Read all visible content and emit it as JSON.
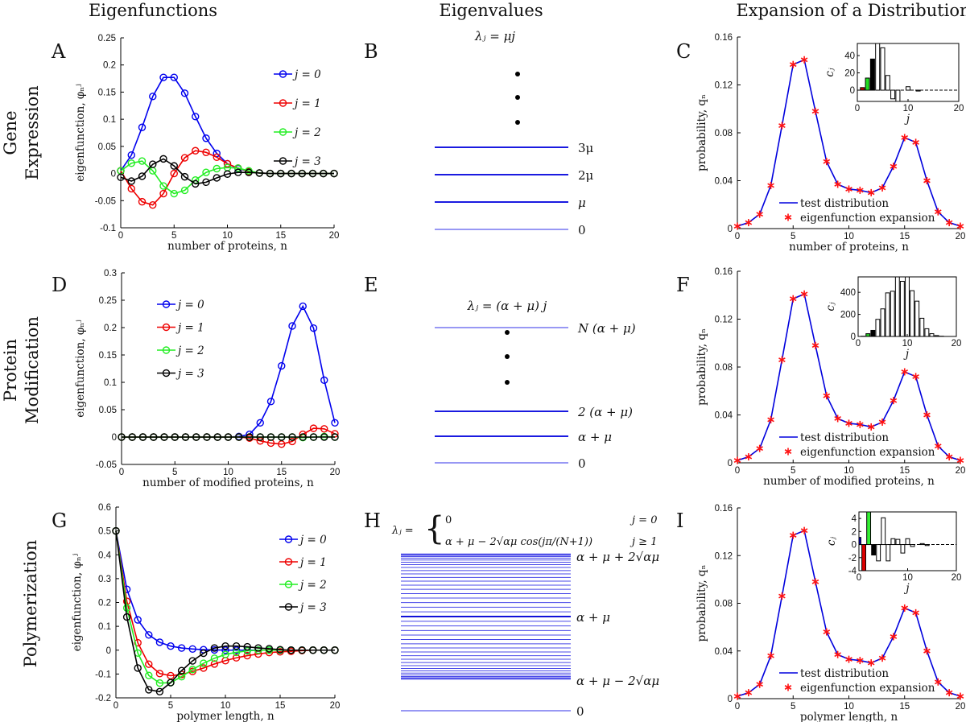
{
  "column_headers": [
    "Eigenfunctions",
    "Eigenvalues",
    "Expansion of a Distribution"
  ],
  "row_labels": [
    [
      "Gene",
      "Expression"
    ],
    [
      "Protein",
      "Modification"
    ],
    [
      "Polymerization"
    ]
  ],
  "colors": {
    "j0": "#0000ee",
    "j1": "#ee0000",
    "j2": "#22ee22",
    "j3": "#000000",
    "test_distribution": "#0000dd",
    "expansion": "#ff1010",
    "level_line": "#1a1ae0"
  },
  "chart_data": [
    {
      "panel": "A",
      "type": "line",
      "xlabel": "number of proteins, n",
      "ylabel": "eigenfunction, φₙʲ",
      "xlim": [
        0,
        20
      ],
      "ylim": [
        -0.1,
        0.25
      ],
      "xticks": [
        0,
        5,
        10,
        15,
        20
      ],
      "yticks": [
        -0.1,
        -0.05,
        0,
        0.05,
        0.1,
        0.15,
        0.2,
        0.25
      ],
      "legend": "top-right",
      "series": [
        {
          "name": "j = 0",
          "color": "#0000ee",
          "values": [
            0.005,
            0.034,
            0.085,
            0.142,
            0.177,
            0.177,
            0.148,
            0.105,
            0.065,
            0.037,
            0.018,
            0.009,
            0.004,
            0.001,
            0,
            0,
            0,
            0,
            0,
            0,
            0
          ]
        },
        {
          "name": "j = 1",
          "color": "#ee0000",
          "values": [
            0.005,
            -0.028,
            -0.052,
            -0.058,
            -0.037,
            0,
            0.029,
            0.042,
            0.039,
            0.03,
            0.018,
            0.01,
            0.004,
            0.001,
            0,
            0,
            0,
            0,
            0,
            0,
            0
          ]
        },
        {
          "name": "j = 2",
          "color": "#22ee22",
          "values": [
            0.005,
            0.019,
            0.023,
            0.005,
            -0.023,
            -0.037,
            -0.031,
            -0.012,
            0.002,
            0.009,
            0.011,
            0.01,
            0.005,
            0.001,
            0,
            0,
            0,
            0,
            0,
            0,
            0
          ]
        },
        {
          "name": "j = 3",
          "color": "#000000",
          "values": [
            -0.007,
            -0.014,
            -0.005,
            0.017,
            0.027,
            0.014,
            -0.006,
            -0.019,
            -0.016,
            -0.008,
            -0.001,
            0.002,
            0.002,
            0.001,
            0,
            0,
            0,
            0,
            0,
            0,
            0
          ]
        }
      ]
    },
    {
      "panel": "B",
      "type": "eigenvalue-levels",
      "formula": "λⱼ = μj",
      "levels": [
        "0",
        "μ",
        "2μ",
        "3μ"
      ],
      "ellipsis": "vertical dots above"
    },
    {
      "panel": "C",
      "type": "line",
      "xlabel": "number of proteins, n",
      "ylabel": "probability, qₙ",
      "xlim": [
        0,
        20
      ],
      "ylim": [
        0,
        0.16
      ],
      "xticks": [
        0,
        5,
        10,
        15,
        20
      ],
      "yticks": [
        0,
        0.04,
        0.08,
        0.12,
        0.16
      ],
      "legend": "bottom-center",
      "series": [
        {
          "name": "test distribution",
          "style": "line",
          "color": "#0000dd",
          "values": [
            0.002,
            0.005,
            0.012,
            0.036,
            0.086,
            0.137,
            0.141,
            0.098,
            0.056,
            0.037,
            0.033,
            0.032,
            0.03,
            0.034,
            0.052,
            0.076,
            0.072,
            0.04,
            0.014,
            0.005,
            0.002
          ]
        },
        {
          "name": "eigenfunction expansion",
          "style": "star",
          "color": "#ff1010",
          "values": [
            0.002,
            0.005,
            0.012,
            0.036,
            0.086,
            0.137,
            0.141,
            0.098,
            0.056,
            0.037,
            0.033,
            0.032,
            0.03,
            0.034,
            0.052,
            0.076,
            0.072,
            0.04,
            0.014,
            0.005,
            0.002
          ]
        }
      ],
      "inset": {
        "type": "bar",
        "xlabel": "j",
        "ylabel": "cⱼ",
        "xlim": [
          0,
          20
        ],
        "ylim": [
          -13,
          54
        ],
        "xticks": [
          0,
          10,
          20
        ],
        "yticks": [
          0,
          20,
          40
        ],
        "values": [
          0,
          3,
          14,
          36,
          60,
          49,
          17,
          -10,
          -15,
          0,
          4,
          0,
          -1,
          0,
          0,
          0,
          0,
          0,
          0,
          0,
          0
        ],
        "bar_colors": [
          "#0000cc",
          "#cc0000",
          "#22dd22",
          "#000000"
        ]
      }
    },
    {
      "panel": "D",
      "type": "line",
      "xlabel": "number of modified proteins, n",
      "ylabel": "eigenfunction, φₙʲ",
      "xlim": [
        0,
        20
      ],
      "ylim": [
        -0.05,
        0.3
      ],
      "xticks": [
        0,
        5,
        10,
        15,
        20
      ],
      "yticks": [
        -0.05,
        0,
        0.05,
        0.1,
        0.15,
        0.2,
        0.25,
        0.3
      ],
      "legend": "top-left",
      "series": [
        {
          "name": "j = 0",
          "color": "#0000ee",
          "values": [
            0,
            0,
            0,
            0,
            0,
            0,
            0,
            0,
            0,
            0,
            0,
            0.001,
            0.005,
            0.026,
            0.065,
            0.13,
            0.203,
            0.239,
            0.199,
            0.104,
            0.026
          ]
        },
        {
          "name": "j = 1",
          "color": "#ee0000",
          "values": [
            0,
            0,
            0,
            0,
            0,
            0,
            0,
            0,
            0,
            0,
            0,
            0,
            -0.002,
            -0.007,
            -0.011,
            -0.013,
            -0.008,
            0.005,
            0.016,
            0.015,
            0.006
          ]
        },
        {
          "name": "j = 2",
          "color": "#22ee22",
          "values": [
            0,
            0,
            0,
            0,
            0,
            0,
            0,
            0,
            0,
            0,
            0,
            0,
            0,
            0,
            0,
            0,
            0,
            -0.001,
            0,
            0.001,
            0
          ]
        },
        {
          "name": "j = 3",
          "color": "#000000",
          "values": [
            0,
            0,
            0,
            0,
            0,
            0,
            0,
            0,
            0,
            0,
            0,
            0,
            0,
            0,
            0,
            0,
            0,
            0,
            0,
            0,
            0
          ]
        }
      ]
    },
    {
      "panel": "E",
      "type": "eigenvalue-levels",
      "formula": "λⱼ = (α + μ) j",
      "levels": [
        "0",
        "α + μ",
        "2 (α + μ)",
        "N (α + μ)"
      ],
      "ellipsis": "vertical dots between 2 (α + μ) and N (α + μ)"
    },
    {
      "panel": "F",
      "type": "line",
      "xlabel": "number of modified proteins, n",
      "ylabel": "probability, qₙ",
      "xlim": [
        0,
        20
      ],
      "ylim": [
        0,
        0.16
      ],
      "xticks": [
        0,
        5,
        10,
        15,
        20
      ],
      "yticks": [
        0,
        0.04,
        0.08,
        0.12,
        0.16
      ],
      "legend": "bottom-center",
      "series": [
        {
          "name": "test distribution",
          "style": "line",
          "color": "#0000dd",
          "values": [
            0.002,
            0.005,
            0.012,
            0.036,
            0.086,
            0.137,
            0.141,
            0.098,
            0.056,
            0.037,
            0.033,
            0.032,
            0.03,
            0.034,
            0.052,
            0.076,
            0.072,
            0.04,
            0.014,
            0.005,
            0.002
          ]
        },
        {
          "name": "eigenfunction expansion",
          "style": "star",
          "color": "#ff1010",
          "values": [
            0.002,
            0.005,
            0.012,
            0.036,
            0.086,
            0.137,
            0.141,
            0.098,
            0.056,
            0.037,
            0.033,
            0.032,
            0.03,
            0.034,
            0.052,
            0.076,
            0.072,
            0.04,
            0.014,
            0.005,
            0.002
          ]
        }
      ],
      "inset": {
        "type": "bar",
        "xlabel": "j",
        "ylabel": "cⱼ",
        "xlim": [
          0,
          20
        ],
        "ylim": [
          0,
          540
        ],
        "xticks": [
          0,
          10,
          20
        ],
        "yticks": [
          0,
          200,
          400
        ],
        "values": [
          0,
          2,
          25,
          55,
          155,
          250,
          395,
          410,
          560,
          500,
          560,
          415,
          320,
          165,
          70,
          25,
          8,
          2,
          0,
          0,
          0
        ],
        "bar_colors": [
          "#0000cc",
          "#cc0000",
          "#22cc22",
          "#000000"
        ]
      }
    },
    {
      "panel": "G",
      "type": "line",
      "xlabel": "polymer length, n",
      "ylabel": "eigenfunction, φₙʲ",
      "xlim": [
        0,
        20
      ],
      "ylim": [
        -0.2,
        0.6
      ],
      "xticks": [
        0,
        5,
        10,
        15,
        20
      ],
      "yticks": [
        -0.2,
        -0.1,
        0,
        0.1,
        0.2,
        0.3,
        0.4,
        0.5,
        0.6
      ],
      "legend": "top-right",
      "series": [
        {
          "name": "j = 0",
          "color": "#0000ee",
          "values": [
            0.5,
            0.255,
            0.127,
            0.064,
            0.033,
            0.017,
            0.009,
            0.005,
            0.002,
            0.001,
            0,
            0,
            0,
            0,
            0,
            0,
            0,
            0,
            0,
            0,
            0
          ]
        },
        {
          "name": "j = 1",
          "color": "#ee0000",
          "values": [
            0.5,
            0.205,
            0.031,
            -0.059,
            -0.098,
            -0.107,
            -0.102,
            -0.089,
            -0.075,
            -0.058,
            -0.044,
            -0.032,
            -0.023,
            -0.016,
            -0.01,
            -0.007,
            -0.005,
            -0.002,
            0,
            0,
            0
          ]
        },
        {
          "name": "j = 2",
          "color": "#22ee22",
          "values": [
            0.5,
            0.177,
            -0.012,
            -0.106,
            -0.138,
            -0.136,
            -0.111,
            -0.081,
            -0.055,
            -0.034,
            -0.018,
            -0.009,
            -0.003,
            0,
            0,
            0,
            0,
            0,
            0,
            0,
            0
          ]
        },
        {
          "name": "j = 3",
          "color": "#000000",
          "values": [
            0.5,
            0.139,
            -0.075,
            -0.166,
            -0.174,
            -0.136,
            -0.086,
            -0.045,
            -0.013,
            0.009,
            0.017,
            0.017,
            0.014,
            0.009,
            0.006,
            0.002,
            0,
            0,
            0,
            0,
            0
          ]
        }
      ]
    },
    {
      "panel": "H",
      "type": "eigenvalue-levels",
      "formula": {
        "lhs": "λⱼ =",
        "case1": "0",
        "cond1": "j = 0",
        "case2": "α + μ − 2√αμ cos(jπ/(N+1))",
        "cond2": "j ≥ 1"
      },
      "levels": [
        "0",
        "α + μ − 2√αμ",
        "α + μ",
        "α + μ + 2√αμ"
      ]
    },
    {
      "panel": "I",
      "type": "line",
      "xlabel": "polymer length, n",
      "ylabel": "probability, qₙ",
      "xlim": [
        0,
        20
      ],
      "ylim": [
        0,
        0.16
      ],
      "xticks": [
        0,
        5,
        10,
        15,
        20
      ],
      "yticks": [
        0,
        0.04,
        0.08,
        0.12,
        0.16
      ],
      "legend": "bottom-center",
      "series": [
        {
          "name": "test distribution",
          "style": "line",
          "color": "#0000dd",
          "values": [
            0.002,
            0.005,
            0.012,
            0.036,
            0.086,
            0.137,
            0.141,
            0.098,
            0.056,
            0.037,
            0.033,
            0.032,
            0.03,
            0.034,
            0.052,
            0.076,
            0.072,
            0.04,
            0.014,
            0.005,
            0.002
          ]
        },
        {
          "name": "eigenfunction expansion",
          "style": "star",
          "color": "#ff1010",
          "values": [
            0.002,
            0.005,
            0.012,
            0.036,
            0.086,
            0.137,
            0.141,
            0.098,
            0.056,
            0.037,
            0.033,
            0.032,
            0.03,
            0.034,
            0.052,
            0.076,
            0.072,
            0.04,
            0.014,
            0.005,
            0.002
          ]
        }
      ],
      "inset": {
        "type": "bar",
        "xlabel": "j",
        "ylabel": "cⱼ",
        "xlim": [
          0,
          20
        ],
        "ylim": [
          -4,
          5
        ],
        "xticks": [
          0,
          10,
          20
        ],
        "yticks": [
          -4,
          -2,
          0,
          2,
          4
        ],
        "values": [
          1.1,
          -4.5,
          5.5,
          -1.6,
          -2.5,
          4.1,
          -2.5,
          0.9,
          0.8,
          -1.3,
          0.9,
          -0.3,
          0,
          0.15,
          -0.15,
          0,
          0,
          0,
          0,
          0,
          0
        ],
        "bar_colors": [
          "#0000cc",
          "#dd0000",
          "#33ee33",
          "#000000"
        ]
      }
    }
  ]
}
